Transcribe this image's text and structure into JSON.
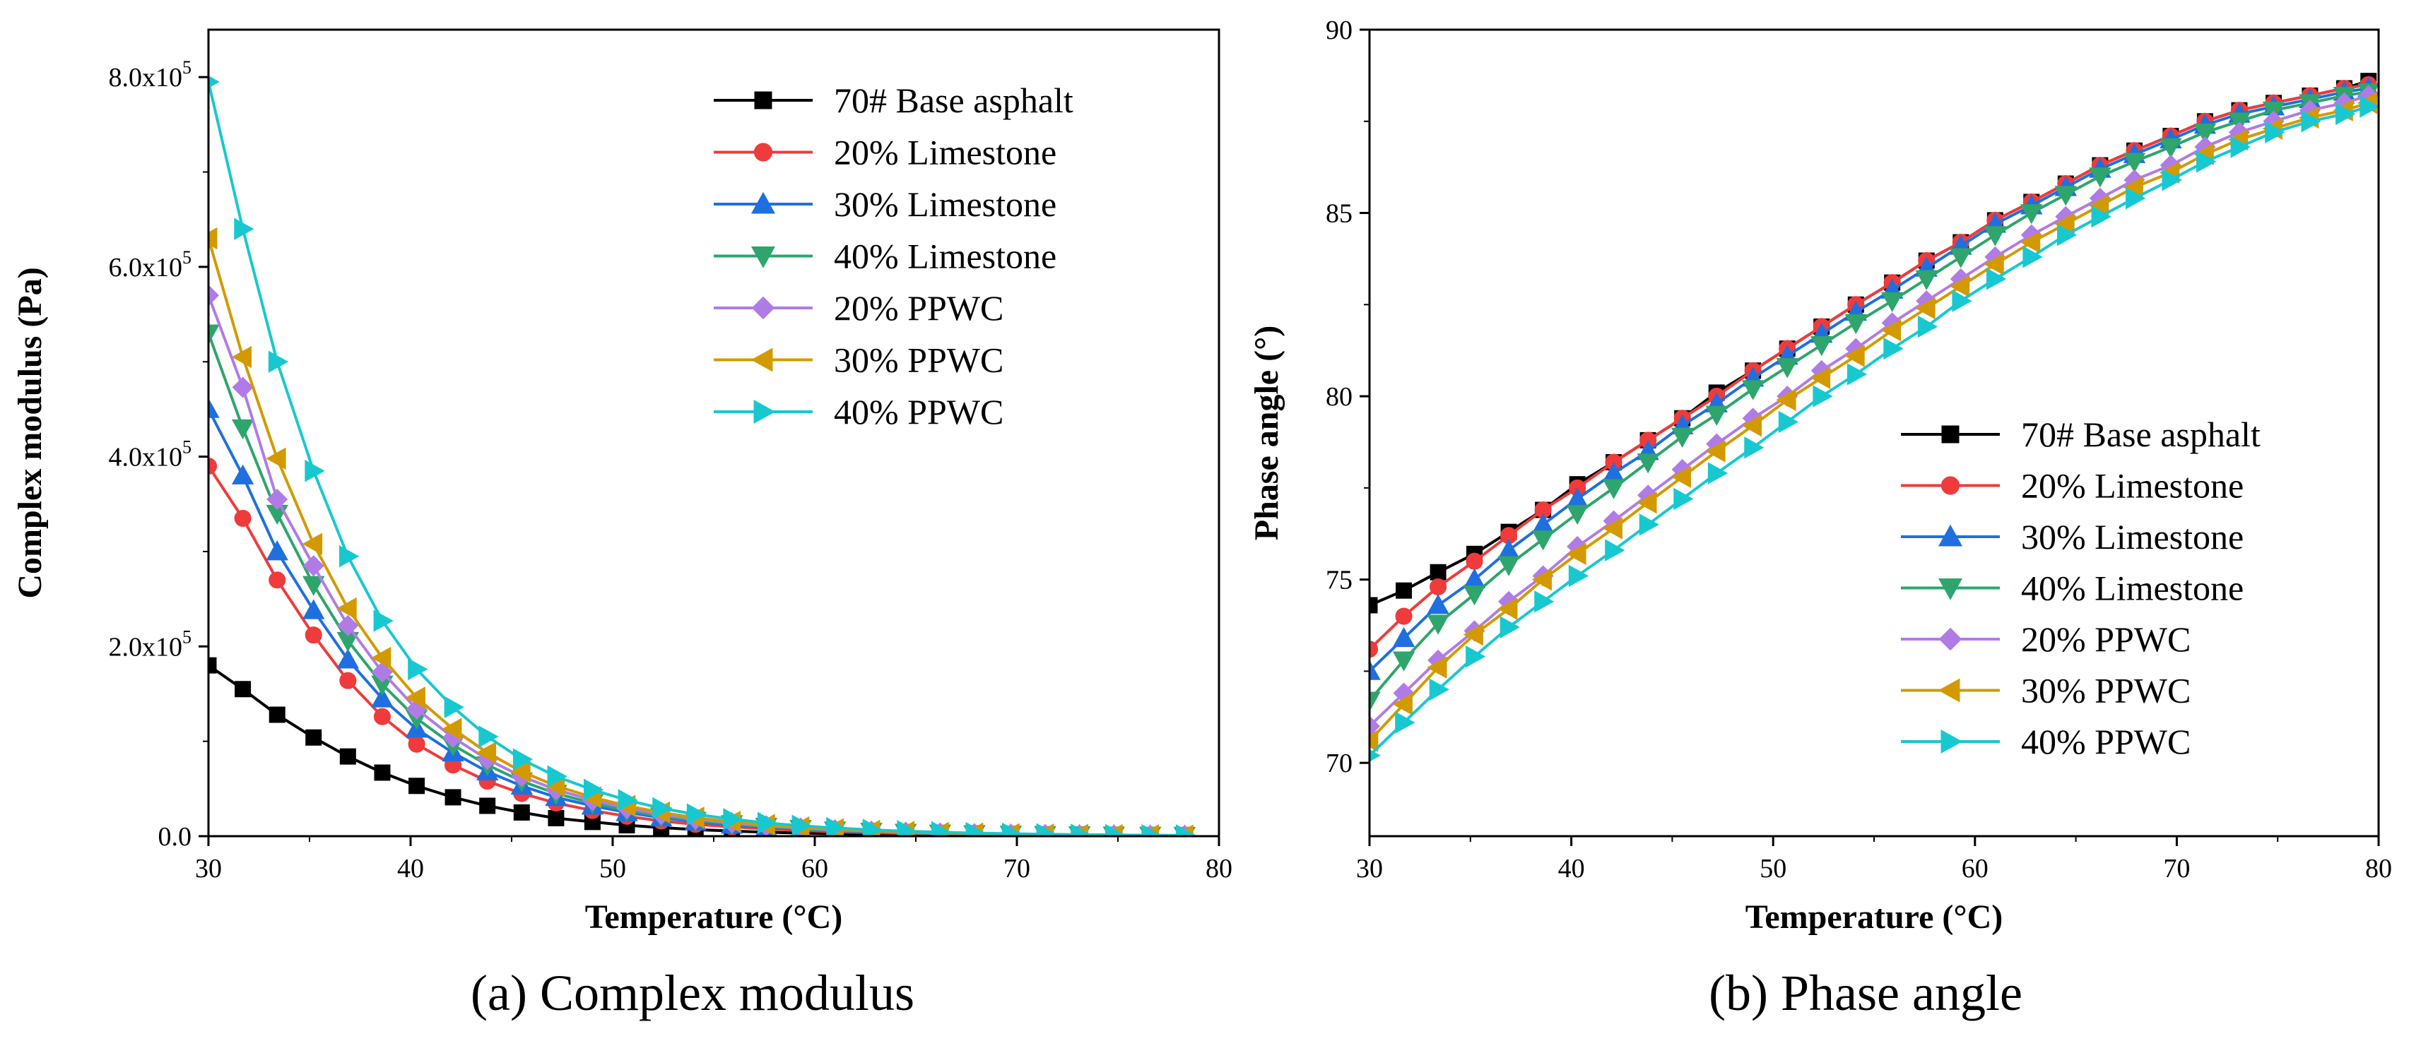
{
  "figure": {
    "captions": [
      "(a) Complex modulus",
      "(b) Phase angle"
    ]
  },
  "series_styles": [
    {
      "name": "70# Base asphalt",
      "color": "#000000",
      "marker": "square"
    },
    {
      "name": "20% Limestone",
      "color": "#ef3b3b",
      "marker": "circle"
    },
    {
      "name": "30% Limestone",
      "color": "#1f6fe0",
      "marker": "triangle-up"
    },
    {
      "name": "40% Limestone",
      "color": "#2ea56c",
      "marker": "triangle-down"
    },
    {
      "name": "20% PPWC",
      "color": "#b07be6",
      "marker": "diamond"
    },
    {
      "name": "30% PPWC",
      "color": "#d29a00",
      "marker": "triangle-left"
    },
    {
      "name": "40% PPWC",
      "color": "#18c8d0",
      "marker": "triangle-right"
    }
  ],
  "chart_data": [
    {
      "type": "line",
      "title": "(a) Complex modulus",
      "xlabel": "Temperature (°C)",
      "ylabel": "Complex modulus (Pa)",
      "xlim": [
        30,
        80
      ],
      "ylim": [
        0,
        850000
      ],
      "xticks": [
        30,
        40,
        50,
        60,
        70,
        80
      ],
      "yticks": [
        {
          "value": 0,
          "label": "0.0"
        },
        {
          "value": 200000,
          "label": "2.0x10^5"
        },
        {
          "value": 400000,
          "label": "4.0x10^5"
        },
        {
          "value": 600000,
          "label": "6.0x10^5"
        },
        {
          "value": 800000,
          "label": "8.0x10^5"
        }
      ],
      "grid": false,
      "legend_position": "top-right",
      "x": [
        30,
        31.7,
        33.4,
        35.2,
        36.9,
        38.6,
        40.3,
        42.1,
        43.8,
        45.5,
        47.2,
        49.0,
        50.7,
        52.4,
        54.1,
        55.9,
        57.6,
        59.3,
        61.0,
        62.8,
        64.5,
        66.2,
        67.9,
        69.7,
        71.4,
        73.1,
        74.8,
        76.6,
        78.3
      ],
      "series": [
        {
          "name": "70# Base asphalt",
          "values": [
            180000,
            155000,
            128000,
            104000,
            84000,
            67000,
            53000,
            41000,
            32000,
            25000,
            19000,
            15000,
            11500,
            9000,
            7000,
            5400,
            4200,
            3300,
            2600,
            2000,
            1600,
            1250,
            1000,
            800,
            650,
            520,
            420,
            340,
            280
          ]
        },
        {
          "name": "20% Limestone",
          "values": [
            390000,
            335000,
            270000,
            212000,
            164000,
            126000,
            97000,
            75000,
            58000,
            45000,
            35000,
            27000,
            21000,
            16000,
            12500,
            9800,
            7600,
            6000,
            4700,
            3700,
            2900,
            2300,
            1800,
            1450,
            1150,
            920,
            740,
            600,
            480
          ]
        },
        {
          "name": "30% Limestone",
          "values": [
            450000,
            380000,
            300000,
            238000,
            186000,
            145000,
            113000,
            88000,
            68000,
            53000,
            41000,
            32000,
            25000,
            19500,
            15200,
            11900,
            9300,
            7300,
            5700,
            4500,
            3500,
            2800,
            2200,
            1750,
            1400,
            1120,
            900,
            720,
            580
          ]
        },
        {
          "name": "40% Limestone",
          "values": [
            530000,
            430000,
            340000,
            265000,
            206000,
            160000,
            124000,
            96000,
            75000,
            58000,
            45000,
            35000,
            27000,
            21000,
            16500,
            12900,
            10100,
            7900,
            6200,
            4900,
            3800,
            3000,
            2400,
            1900,
            1500,
            1200,
            960,
            770,
            620
          ]
        },
        {
          "name": "20% PPWC",
          "values": [
            570000,
            473000,
            355000,
            285000,
            222000,
            173000,
            134000,
            104000,
            81000,
            63000,
            49000,
            38000,
            29500,
            23000,
            18000,
            14000,
            11000,
            8600,
            6700,
            5300,
            4200,
            3300,
            2600,
            2050,
            1650,
            1300,
            1050,
            840,
            680
          ]
        },
        {
          "name": "30% PPWC",
          "values": [
            630000,
            505000,
            398000,
            308000,
            240000,
            188000,
            146000,
            113000,
            88000,
            68000,
            53000,
            41000,
            32000,
            25000,
            19500,
            15200,
            11900,
            9300,
            7300,
            5700,
            4500,
            3500,
            2800,
            2200,
            1750,
            1400,
            1120,
            900,
            720
          ]
        },
        {
          "name": "40% PPWC",
          "values": [
            795000,
            640000,
            500000,
            385000,
            295000,
            227000,
            176000,
            136000,
            105000,
            81000,
            63000,
            49000,
            38000,
            29500,
            23000,
            18000,
            14000,
            11000,
            8600,
            6700,
            5300,
            4200,
            3300,
            2600,
            2050,
            1650,
            1300,
            1050,
            840
          ]
        }
      ]
    },
    {
      "type": "line",
      "title": "(b) Phase angle",
      "xlabel": "Temperature (°C)",
      "ylabel": "Phase angle (°)",
      "xlim": [
        30,
        80
      ],
      "ylim": [
        68,
        90
      ],
      "xticks": [
        30,
        40,
        50,
        60,
        70,
        80
      ],
      "yticks": [
        {
          "value": 70,
          "label": "70"
        },
        {
          "value": 75,
          "label": "75"
        },
        {
          "value": 80,
          "label": "80"
        },
        {
          "value": 85,
          "label": "85"
        },
        {
          "value": 90,
          "label": "90"
        }
      ],
      "grid": false,
      "legend_position": "right",
      "x": [
        30,
        31.7,
        33.4,
        35.2,
        36.9,
        38.6,
        40.3,
        42.1,
        43.8,
        45.5,
        47.2,
        49.0,
        50.7,
        52.4,
        54.1,
        55.9,
        57.6,
        59.3,
        61.0,
        62.8,
        64.5,
        66.2,
        67.9,
        69.7,
        71.4,
        73.1,
        74.8,
        76.6,
        78.3,
        79.5
      ],
      "series": [
        {
          "name": "70# Base asphalt",
          "values": [
            74.3,
            74.7,
            75.2,
            75.7,
            76.3,
            76.9,
            77.6,
            78.2,
            78.8,
            79.4,
            80.1,
            80.7,
            81.3,
            81.9,
            82.5,
            83.1,
            83.7,
            84.2,
            84.8,
            85.3,
            85.8,
            86.3,
            86.7,
            87.1,
            87.5,
            87.8,
            88.0,
            88.2,
            88.4,
            88.6
          ]
        },
        {
          "name": "20% Limestone",
          "values": [
            73.1,
            74.0,
            74.8,
            75.5,
            76.2,
            76.9,
            77.5,
            78.2,
            78.8,
            79.4,
            80.0,
            80.7,
            81.3,
            81.9,
            82.5,
            83.1,
            83.7,
            84.2,
            84.8,
            85.3,
            85.8,
            86.3,
            86.7,
            87.1,
            87.5,
            87.8,
            88.0,
            88.2,
            88.4,
            88.5
          ]
        },
        {
          "name": "30% Limestone",
          "values": [
            72.5,
            73.4,
            74.3,
            75.0,
            75.8,
            76.5,
            77.2,
            77.9,
            78.5,
            79.2,
            79.8,
            80.5,
            81.1,
            81.7,
            82.3,
            82.9,
            83.5,
            84.1,
            84.7,
            85.2,
            85.7,
            86.2,
            86.6,
            87.0,
            87.4,
            87.7,
            87.9,
            88.1,
            88.3,
            88.4
          ]
        },
        {
          "name": "40% Limestone",
          "values": [
            71.7,
            72.8,
            73.8,
            74.6,
            75.4,
            76.1,
            76.8,
            77.5,
            78.2,
            78.9,
            79.5,
            80.2,
            80.8,
            81.4,
            82.0,
            82.6,
            83.2,
            83.8,
            84.4,
            85.0,
            85.5,
            86.0,
            86.4,
            86.8,
            87.2,
            87.5,
            87.8,
            88.0,
            88.2,
            88.3
          ]
        },
        {
          "name": "20% PPWC",
          "values": [
            71.0,
            71.9,
            72.8,
            73.6,
            74.4,
            75.1,
            75.9,
            76.6,
            77.3,
            78.0,
            78.7,
            79.4,
            80.0,
            80.7,
            81.3,
            82.0,
            82.6,
            83.2,
            83.8,
            84.4,
            84.9,
            85.4,
            85.9,
            86.3,
            86.8,
            87.2,
            87.5,
            87.8,
            88.0,
            88.2
          ]
        },
        {
          "name": "30% PPWC",
          "values": [
            70.6,
            71.6,
            72.6,
            73.5,
            74.2,
            75.0,
            75.7,
            76.4,
            77.1,
            77.8,
            78.5,
            79.2,
            79.9,
            80.5,
            81.1,
            81.8,
            82.4,
            83.0,
            83.6,
            84.2,
            84.7,
            85.2,
            85.7,
            86.1,
            86.6,
            87.0,
            87.3,
            87.6,
            87.8,
            88.0
          ]
        },
        {
          "name": "40% PPWC",
          "values": [
            70.2,
            71.1,
            72.0,
            72.9,
            73.7,
            74.4,
            75.1,
            75.8,
            76.5,
            77.2,
            77.9,
            78.6,
            79.3,
            80.0,
            80.6,
            81.3,
            81.9,
            82.6,
            83.2,
            83.8,
            84.4,
            84.9,
            85.4,
            85.9,
            86.4,
            86.8,
            87.2,
            87.5,
            87.7,
            87.9
          ]
        }
      ]
    }
  ]
}
